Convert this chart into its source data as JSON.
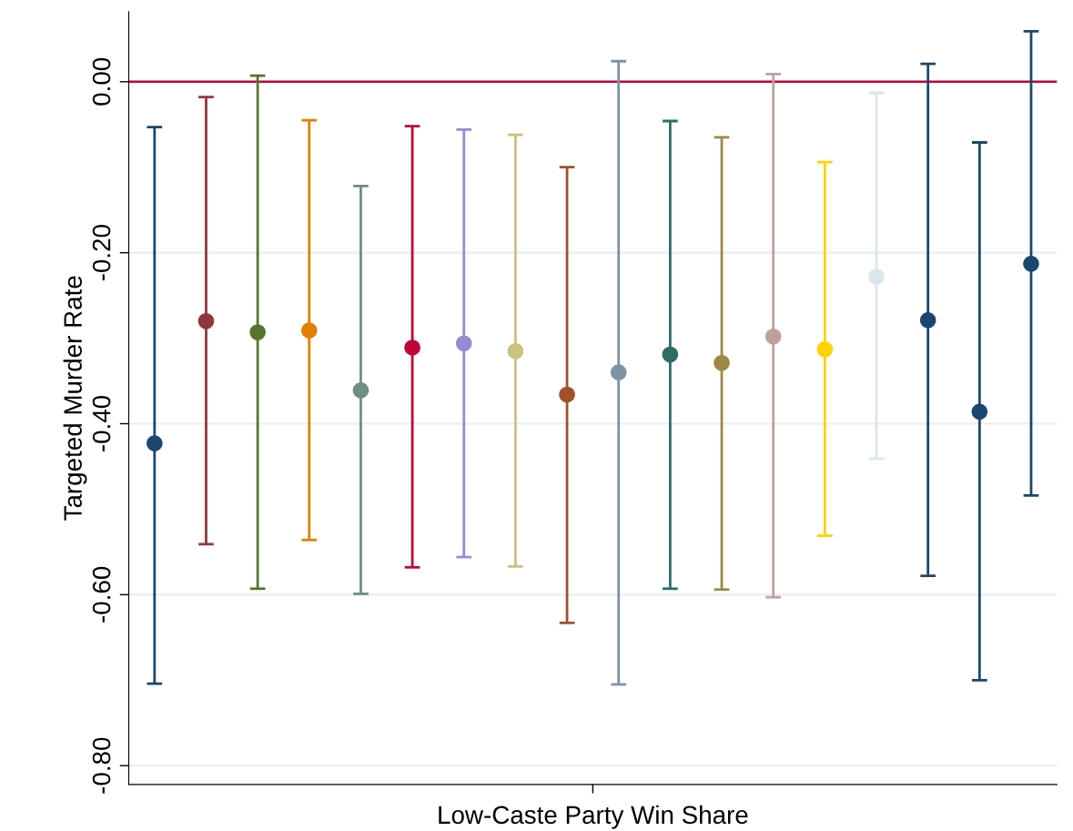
{
  "chart_data": {
    "type": "scatter",
    "xlabel": "Low-Caste Party Win Share",
    "ylabel": "Targeted Murder Rate",
    "categories": [
      null,
      null,
      null,
      null,
      null,
      null,
      null,
      null,
      null,
      null,
      null,
      null,
      null,
      null,
      null,
      null,
      null,
      null
    ],
    "values": [
      -0.423,
      -0.28,
      -0.293,
      -0.291,
      -0.361,
      -0.311,
      -0.306,
      -0.315,
      -0.366,
      -0.34,
      -0.319,
      -0.329,
      -0.298,
      -0.313,
      -0.228,
      -0.279,
      -0.386,
      -0.213
    ],
    "errors": [
      [
        -0.704,
        -0.053
      ],
      [
        -0.541,
        -0.018
      ],
      [
        -0.593,
        0.007
      ],
      [
        -0.536,
        -0.045
      ],
      [
        -0.599,
        -0.122
      ],
      [
        -0.568,
        -0.052
      ],
      [
        -0.556,
        -0.056
      ],
      [
        -0.567,
        -0.062
      ],
      [
        -0.633,
        -0.1
      ],
      [
        -0.705,
        0.024
      ],
      [
        -0.593,
        -0.046
      ],
      [
        -0.594,
        -0.065
      ],
      [
        -0.603,
        0.009
      ],
      [
        -0.531,
        -0.094
      ],
      [
        -0.441,
        -0.013
      ],
      [
        -0.578,
        0.021
      ],
      [
        -0.7,
        -0.071
      ],
      [
        -0.484,
        0.059
      ]
    ],
    "colors": [
      "#1a476f",
      "#90353b",
      "#55752f",
      "#e37e00",
      "#6e8e84",
      "#c10534",
      "#938dd2",
      "#cac27e",
      "#a0522d",
      "#7b92a8",
      "#2d6d66",
      "#9c8847",
      "#bfa19c",
      "#ffd200",
      "#d9e6eb",
      "#1a476f",
      "#1a476f",
      "#1a476f"
    ],
    "ylim": [
      -0.822,
      0.082
    ],
    "yticks": [
      {
        "value": -0.8,
        "label": "-0.80"
      },
      {
        "value": -0.6,
        "label": "-0.60"
      },
      {
        "value": -0.4,
        "label": "-0.40"
      },
      {
        "value": -0.2,
        "label": "-0.20"
      },
      {
        "value": 0,
        "label": "0.00"
      }
    ],
    "ref_lines": [
      {
        "axis": "y",
        "value": 0,
        "color": "#c10534"
      }
    ],
    "grid": "y",
    "marker": "circle"
  }
}
